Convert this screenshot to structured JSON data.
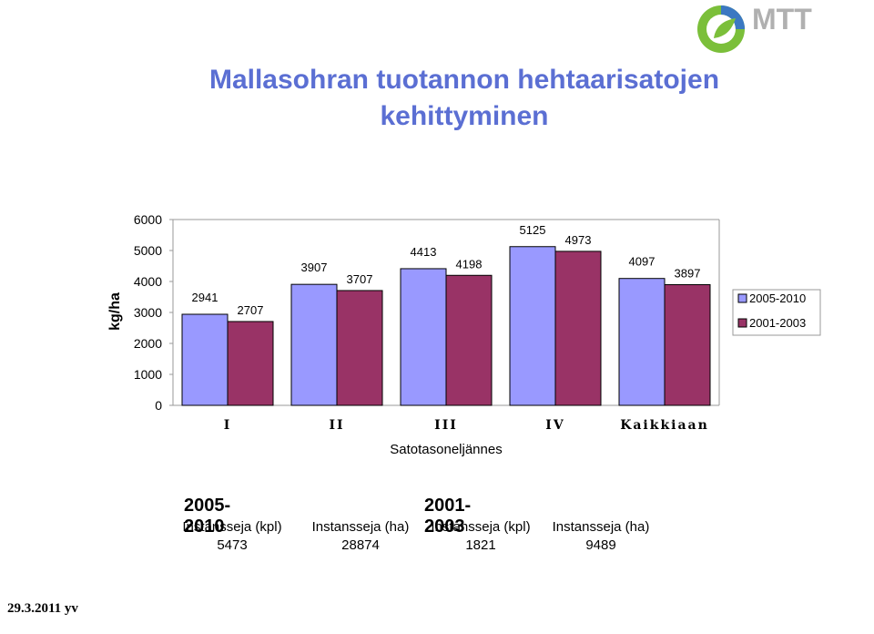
{
  "logo": {
    "text": "MTT",
    "icon": "mtt-leaf-logo"
  },
  "title": {
    "line1": "Mallasohran tuotannon hehtaarisatojen",
    "line2": "kehittyminen"
  },
  "chart_data": {
    "type": "bar",
    "categories": [
      "I",
      "II",
      "III",
      "IV",
      "Kaikkiaan"
    ],
    "series": [
      {
        "name": "2005-2010",
        "values": [
          2941,
          3907,
          4413,
          5125,
          4097
        ],
        "color": "#9999ff"
      },
      {
        "name": "2001-2003",
        "values": [
          2707,
          3707,
          4198,
          4973,
          3897
        ],
        "color": "#993366"
      }
    ],
    "ylabel": "kg/ha",
    "xlabel": "Satotasoneljännes",
    "ylim": [
      0,
      6000
    ],
    "yticks": [
      0,
      1000,
      2000,
      3000,
      4000,
      5000,
      6000
    ],
    "grid": false,
    "legend": "right"
  },
  "stats": {
    "p1": {
      "title": "2005-2010",
      "cols": [
        {
          "label": "Instansseja (kpl)",
          "value": "5473"
        },
        {
          "label": "Instansseja (ha)",
          "value": "28874"
        }
      ]
    },
    "p2": {
      "title": "2001-2003",
      "cols": [
        {
          "label": "Instansseja (kpl)",
          "value": "1821"
        },
        {
          "label": "Instansseja (ha)",
          "value": "9489"
        }
      ]
    }
  },
  "footer": "29.3.2011 yv"
}
